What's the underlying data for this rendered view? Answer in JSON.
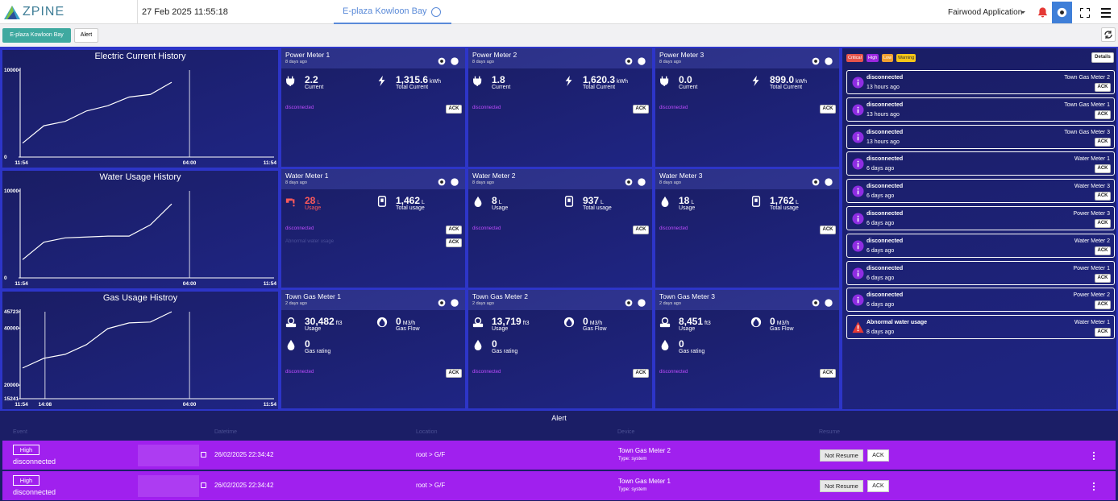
{
  "header": {
    "logo": "ZPINE",
    "datetime": "27 Feb 2025 11:55:18",
    "site_tab": "E-plaza Kowloon Bay",
    "app": "Fairwood Application"
  },
  "toolbar": {
    "site_button": "E-plaza Kowloon Bay",
    "alert_button": "Alert"
  },
  "history_charts": [
    {
      "title": "Electric Current History",
      "ylim": [
        0,
        10000
      ],
      "yticks": [
        0,
        10000
      ],
      "xticks": [
        "11:54",
        "04:00",
        "11:54"
      ],
      "values": [
        1600,
        3600,
        4100,
        5300,
        5900,
        6900,
        7200,
        8600
      ]
    },
    {
      "title": "Water Usage History",
      "ylim": [
        0,
        10000
      ],
      "yticks": [
        0,
        10000
      ],
      "xticks": [
        "11:54",
        "04:00",
        "11:54"
      ],
      "values": [
        2100,
        4100,
        4600,
        4700,
        4800,
        4800,
        6100,
        8500
      ]
    },
    {
      "title": "Gas Usage Histroy",
      "ylim": [
        15241,
        45723
      ],
      "yticks": [
        15241,
        20000,
        40000,
        45723
      ],
      "xticks": [
        "11:54",
        "14:08",
        "04:00",
        "11:54"
      ],
      "values": [
        26000,
        29400,
        30800,
        34200,
        39800,
        41800,
        42100,
        45723
      ]
    }
  ],
  "ack": "ACK",
  "meter_rows": [
    [
      {
        "title": "Power Meter 1",
        "updated": "8 days ago",
        "metrics": [
          {
            "value": "2.2",
            "label": "Current"
          },
          {
            "value": "1,315.6",
            "unit": "kWh",
            "label": "Total Current"
          }
        ],
        "alerts": [
          "disconnected"
        ]
      },
      {
        "title": "Power Meter 2",
        "updated": "8 days ago",
        "metrics": [
          {
            "value": "1.8",
            "label": "Current"
          },
          {
            "value": "1,620.3",
            "unit": "kWh",
            "label": "Total Current"
          }
        ],
        "alerts": [
          "disconnected"
        ]
      },
      {
        "title": "Power Meter 3",
        "updated": "8 days ago",
        "metrics": [
          {
            "value": "0.0",
            "label": "Current"
          },
          {
            "value": "899.0",
            "unit": "kWh",
            "label": "Total Current"
          }
        ],
        "alerts": [
          "disconnected"
        ]
      }
    ],
    [
      {
        "title": "Water Meter 1",
        "updated": "8 days ago",
        "metrics": [
          {
            "value": "28",
            "unit": "L",
            "label": "Usage",
            "color": "#ff5a5a"
          },
          {
            "value": "1,462",
            "unit": "L",
            "label": "Total usage"
          }
        ],
        "alerts": [
          "disconnected",
          "Abnormal water usage"
        ]
      },
      {
        "title": "Water Meter 2",
        "updated": "8 days ago",
        "metrics": [
          {
            "value": "8",
            "unit": "L",
            "label": "Usage"
          },
          {
            "value": "937",
            "unit": "L",
            "label": "Total usage"
          }
        ],
        "alerts": [
          "disconnected"
        ]
      },
      {
        "title": "Water Meter 3",
        "updated": "8 days ago",
        "metrics": [
          {
            "value": "18",
            "unit": "L",
            "label": "Usage"
          },
          {
            "value": "1,762",
            "unit": "L",
            "label": "Total usage"
          }
        ],
        "alerts": [
          "disconnected"
        ]
      }
    ],
    [
      {
        "title": "Town Gas Meter 1",
        "updated": "2 days ago",
        "metrics": [
          {
            "value": "30,482",
            "unit": "ft3",
            "label": "Usage"
          },
          {
            "value": "0",
            "unit": "M3/h",
            "label": "Gas Flow"
          },
          {
            "value": "0",
            "label": "Gas rating"
          }
        ],
        "alerts": [
          "disconnected"
        ]
      },
      {
        "title": "Town Gas Meter 2",
        "updated": "2 days ago",
        "metrics": [
          {
            "value": "13,719",
            "unit": "ft3",
            "label": "Usage"
          },
          {
            "value": "0",
            "unit": "M3/h",
            "label": "Gas Flow"
          },
          {
            "value": "0",
            "label": "Gas rating"
          }
        ],
        "alerts": [
          "disconnected"
        ]
      },
      {
        "title": "Town Gas Meter 3",
        "updated": "2 days ago",
        "metrics": [
          {
            "value": "8,451",
            "unit": "ft3",
            "label": "Usage"
          },
          {
            "value": "0",
            "unit": "M3/h",
            "label": "Gas Flow"
          },
          {
            "value": "0",
            "label": "Gas rating"
          }
        ],
        "alerts": [
          "disconnected"
        ]
      }
    ]
  ],
  "alert_panel": {
    "levels": [
      {
        "name": "Critical",
        "color": "#e5534b"
      },
      {
        "name": "High",
        "color": "#9b27e0"
      },
      {
        "name": "Low",
        "color": "#f0a030"
      },
      {
        "name": "Warning",
        "color": "#f5c518"
      }
    ],
    "details": "Details",
    "items": [
      {
        "status": "disconnected",
        "device": "Town Gas Meter 2",
        "time": "13 hours ago",
        "color": "#8e2de2"
      },
      {
        "status": "disconnected",
        "device": "Town Gas Meter 1",
        "time": "13 hours ago",
        "color": "#8e2de2"
      },
      {
        "status": "disconnected",
        "device": "Town Gas Meter 3",
        "time": "13 hours ago",
        "color": "#8e2de2"
      },
      {
        "status": "disconnected",
        "device": "Water Meter 1",
        "time": "6 days ago",
        "color": "#8e2de2"
      },
      {
        "status": "disconnected",
        "device": "Water Meter 3",
        "time": "6 days ago",
        "color": "#8e2de2"
      },
      {
        "status": "disconnected",
        "device": "Power Meter 3",
        "time": "6 days ago",
        "color": "#8e2de2"
      },
      {
        "status": "disconnected",
        "device": "Water Meter 2",
        "time": "6 days ago",
        "color": "#8e2de2"
      },
      {
        "status": "disconnected",
        "device": "Power Meter 1",
        "time": "6 days ago",
        "color": "#8e2de2"
      },
      {
        "status": "disconnected",
        "device": "Power Meter 2",
        "time": "6 days ago",
        "color": "#8e2de2"
      },
      {
        "status": "Abnormal water usage",
        "device": "Water Meter 1",
        "time": "8 days ago",
        "color": "#e53935"
      }
    ]
  },
  "alert_table": {
    "title": "Alert",
    "columns": [
      "Event",
      "Datetime",
      "Location",
      "Device",
      "Resume"
    ],
    "rows": [
      {
        "level": "High",
        "event": "disconnected",
        "datetime": "26/02/2025 22:34:42",
        "location": "root > G/F",
        "device": "Town Gas Meter 2",
        "type": "Type: system",
        "resume": "Not Resume"
      },
      {
        "level": "High",
        "event": "disconnected",
        "datetime": "26/02/2025 22:34:42",
        "location": "root > G/F",
        "device": "Town Gas Meter 1",
        "type": "Type: system",
        "resume": "Not Resume"
      }
    ]
  }
}
